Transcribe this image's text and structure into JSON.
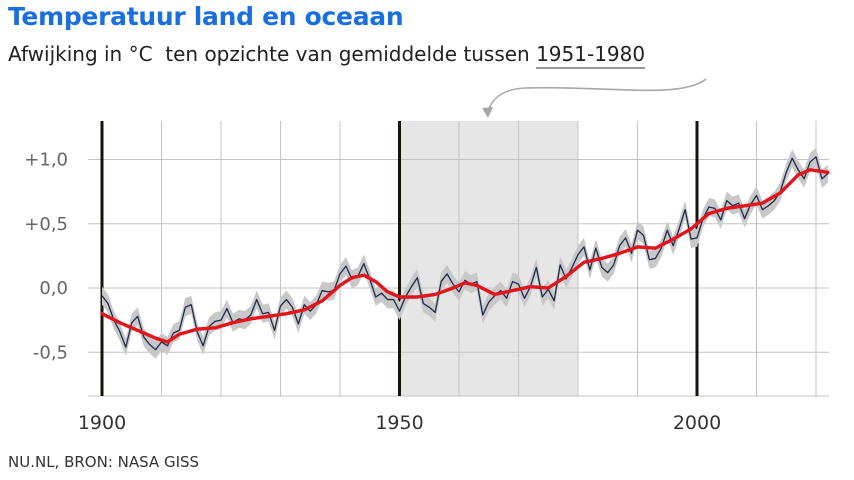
{
  "header": {
    "title": "Temperatuur land en oceaan",
    "subtitle_prefix": "Afwijking in °C  ten opzichte van gemiddelde tussen ",
    "subtitle_period": "1951-1980"
  },
  "footer": {
    "source": "NU.NL, BRON: NASA GISS"
  },
  "colors": {
    "annual": "#1e2a4a",
    "smoothed": "#e3141b",
    "uncertainty_band": "#c8c8c8",
    "baseline_shading": "#e6e6e6",
    "title": "#1a6fe0"
  },
  "chart_data": {
    "type": "line",
    "title": "Temperatuur land en oceaan",
    "subtitle": "Afwijking in °C  ten opzichte van gemiddelde tussen 1951-1980",
    "xlabel": "",
    "ylabel": "",
    "xlim": [
      1900,
      2022
    ],
    "ylim": [
      -0.75,
      1.3
    ],
    "x_ticks": [
      1900,
      1950,
      2000
    ],
    "x_tick_labels": [
      "1900",
      "1950",
      "2000"
    ],
    "y_ticks": [
      1.0,
      0.5,
      0.0,
      -0.5
    ],
    "y_tick_labels": [
      "+1,0",
      "+0,5",
      "0,0",
      "-0,5"
    ],
    "grid": true,
    "baseline_period": [
      1951,
      1980
    ],
    "decade_markers": [
      1900,
      1950,
      2000
    ],
    "band_halfwidth": 0.07,
    "series": [
      {
        "style": "annual",
        "x": [
          1900,
          1901,
          1902,
          1903,
          1904,
          1905,
          1906,
          1907,
          1908,
          1909,
          1910,
          1911,
          1912,
          1913,
          1914,
          1915,
          1916,
          1917,
          1918,
          1919,
          1920,
          1921,
          1922,
          1923,
          1924,
          1925,
          1926,
          1927,
          1928,
          1929,
          1930,
          1931,
          1932,
          1933,
          1934,
          1935,
          1936,
          1937,
          1938,
          1939,
          1940,
          1941,
          1942,
          1943,
          1944,
          1945,
          1946,
          1947,
          1948,
          1949,
          1950,
          1951,
          1952,
          1953,
          1954,
          1955,
          1956,
          1957,
          1958,
          1959,
          1960,
          1961,
          1962,
          1963,
          1964,
          1965,
          1966,
          1967,
          1968,
          1969,
          1970,
          1971,
          1972,
          1973,
          1974,
          1975,
          1976,
          1977,
          1978,
          1979,
          1980,
          1981,
          1982,
          1983,
          1984,
          1985,
          1986,
          1987,
          1988,
          1989,
          1990,
          1991,
          1992,
          1993,
          1994,
          1995,
          1996,
          1997,
          1998,
          1999,
          2000,
          2001,
          2002,
          2003,
          2004,
          2005,
          2006,
          2007,
          2008,
          2009,
          2010,
          2011,
          2012,
          2013,
          2014,
          2015,
          2016,
          2017,
          2018,
          2019,
          2020,
          2021,
          2022
        ],
        "y": [
          -0.06,
          -0.12,
          -0.25,
          -0.34,
          -0.46,
          -0.27,
          -0.22,
          -0.38,
          -0.44,
          -0.48,
          -0.42,
          -0.45,
          -0.35,
          -0.33,
          -0.15,
          -0.13,
          -0.34,
          -0.45,
          -0.3,
          -0.26,
          -0.25,
          -0.16,
          -0.27,
          -0.24,
          -0.25,
          -0.21,
          -0.09,
          -0.2,
          -0.19,
          -0.33,
          -0.14,
          -0.09,
          -0.15,
          -0.28,
          -0.13,
          -0.18,
          -0.13,
          -0.02,
          -0.03,
          -0.02,
          0.11,
          0.17,
          0.07,
          0.09,
          0.19,
          0.07,
          -0.07,
          -0.04,
          -0.09,
          -0.09,
          -0.18,
          -0.07,
          0.01,
          0.08,
          -0.12,
          -0.15,
          -0.19,
          0.05,
          0.11,
          0.03,
          -0.03,
          0.06,
          0.03,
          0.05,
          -0.21,
          -0.11,
          -0.06,
          -0.02,
          -0.08,
          0.05,
          0.03,
          -0.08,
          0.01,
          0.16,
          -0.07,
          -0.01,
          -0.1,
          0.18,
          0.07,
          0.16,
          0.26,
          0.32,
          0.14,
          0.31,
          0.16,
          0.12,
          0.18,
          0.33,
          0.39,
          0.27,
          0.45,
          0.41,
          0.22,
          0.23,
          0.31,
          0.45,
          0.33,
          0.46,
          0.61,
          0.38,
          0.39,
          0.54,
          0.63,
          0.62,
          0.53,
          0.68,
          0.64,
          0.66,
          0.54,
          0.65,
          0.72,
          0.61,
          0.64,
          0.68,
          0.75,
          0.9,
          1.01,
          0.92,
          0.85,
          0.98,
          1.02,
          0.85,
          0.89
        ]
      },
      {
        "style": "smoothed",
        "x": [
          1900,
          1903,
          1906,
          1909,
          1911,
          1913,
          1916,
          1919,
          1922,
          1925,
          1928,
          1931,
          1934,
          1937,
          1940,
          1942,
          1944,
          1946,
          1948,
          1950,
          1953,
          1956,
          1959,
          1961,
          1963,
          1966,
          1969,
          1972,
          1975,
          1978,
          1981,
          1984,
          1987,
          1990,
          1993,
          1996,
          1999,
          2002,
          2005,
          2008,
          2011,
          2014,
          2017,
          2019,
          2022
        ],
        "y": [
          -0.2,
          -0.27,
          -0.33,
          -0.39,
          -0.42,
          -0.36,
          -0.32,
          -0.31,
          -0.27,
          -0.24,
          -0.22,
          -0.2,
          -0.17,
          -0.1,
          0.02,
          0.08,
          0.1,
          0.05,
          -0.03,
          -0.07,
          -0.07,
          -0.05,
          0.0,
          0.04,
          0.02,
          -0.05,
          -0.02,
          0.01,
          0.0,
          0.09,
          0.2,
          0.23,
          0.27,
          0.32,
          0.31,
          0.38,
          0.46,
          0.58,
          0.62,
          0.64,
          0.66,
          0.74,
          0.88,
          0.92,
          0.9
        ]
      }
    ]
  }
}
